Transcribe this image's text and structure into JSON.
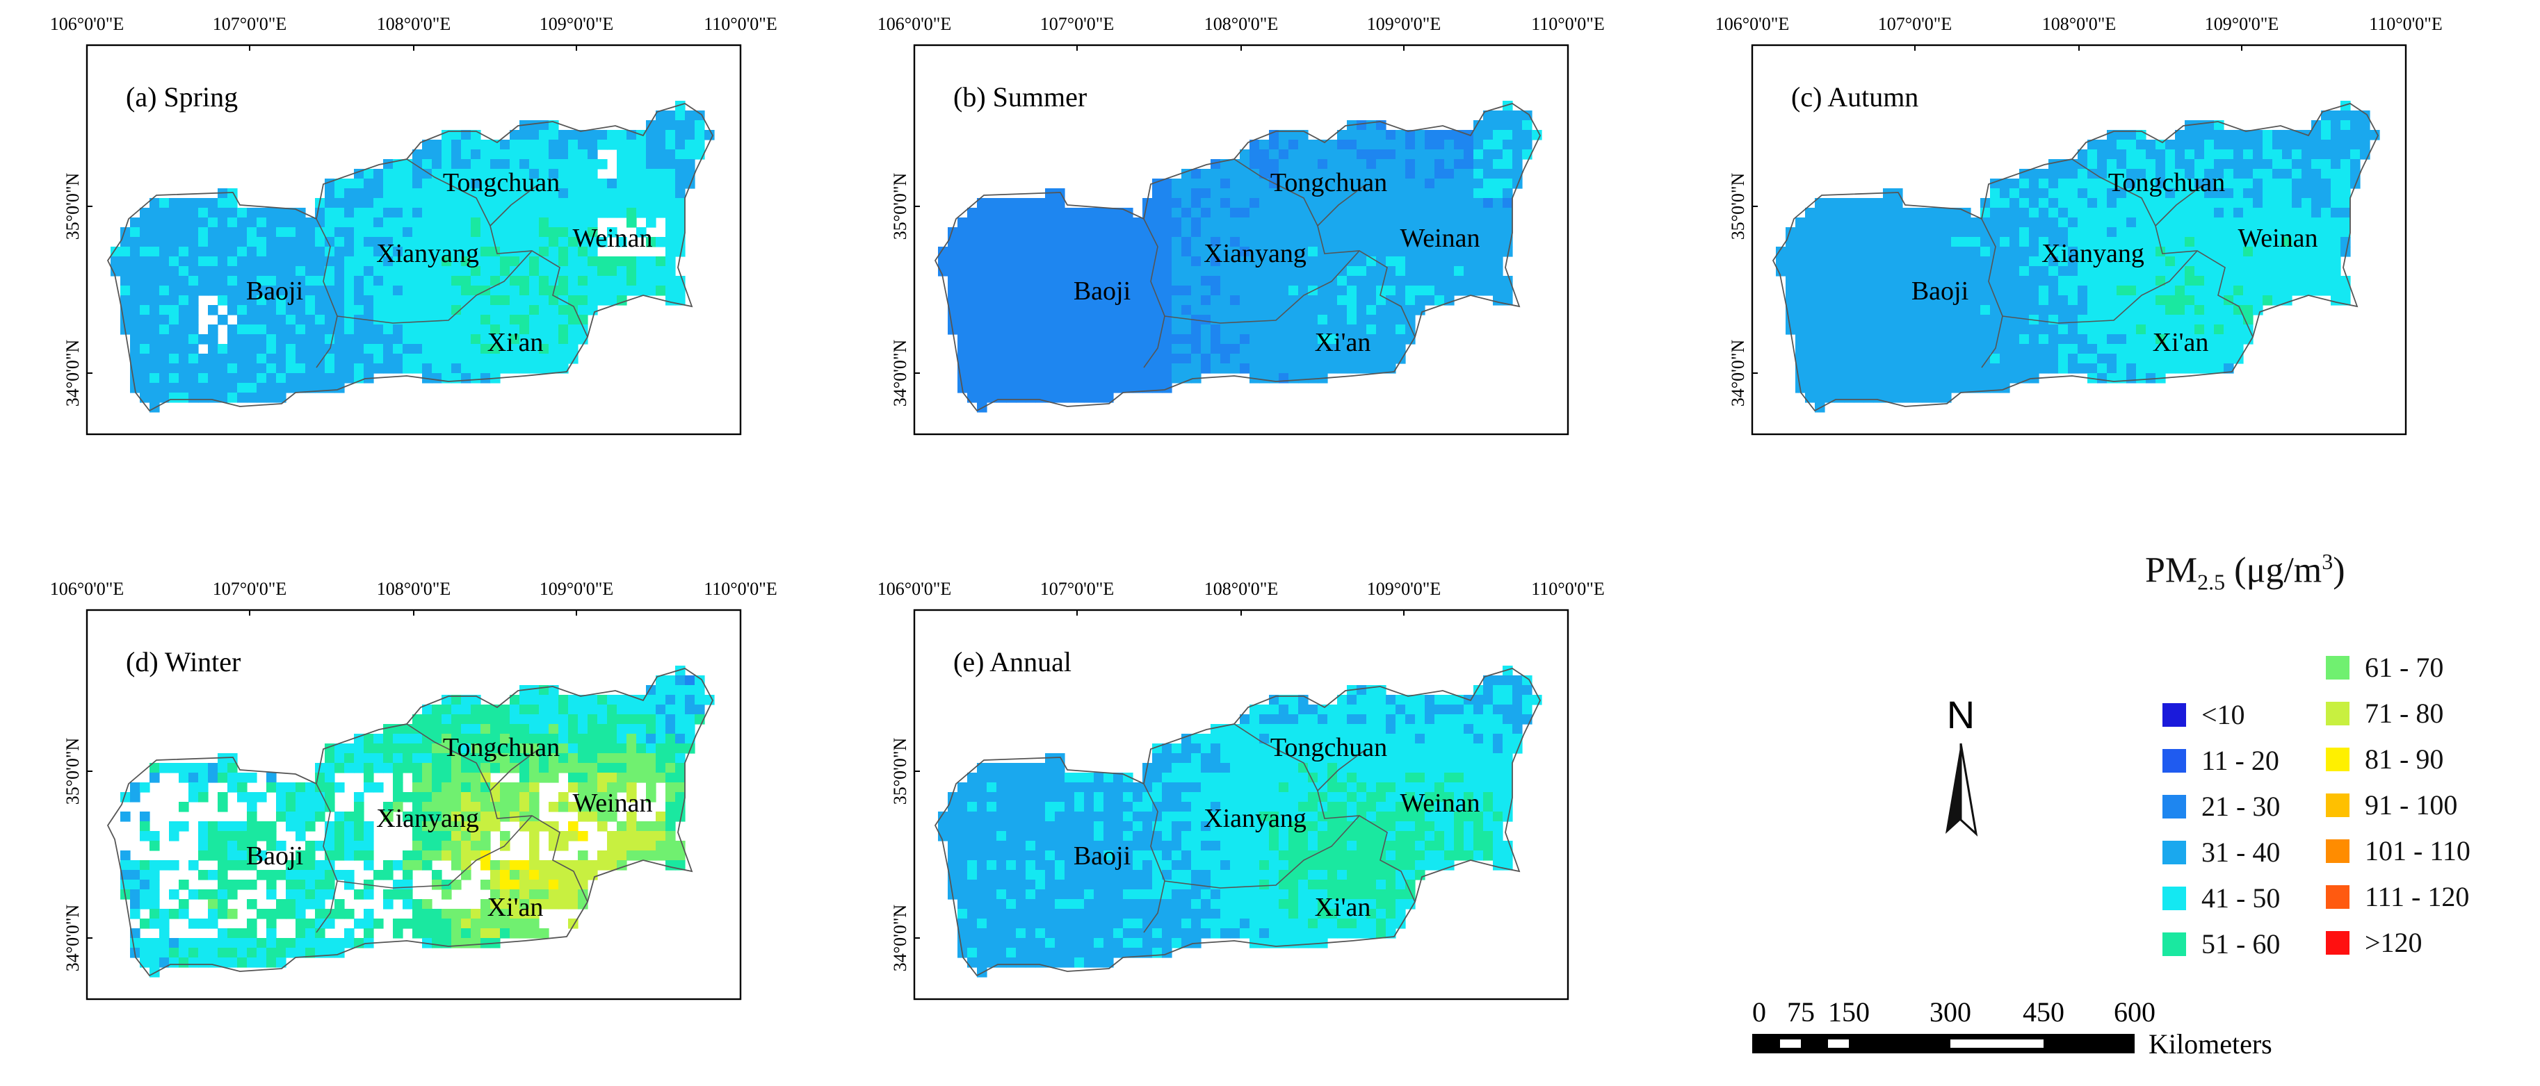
{
  "coord_labels": {
    "lon": [
      "106°0'0\"E",
      "107°0'0\"E",
      "108°0'0\"E",
      "109°0'0\"E",
      "110°0'0\"E"
    ],
    "lat": [
      "35°0'0\"N",
      "34°0'0\"N"
    ]
  },
  "panels": [
    {
      "id": "spring",
      "label": "(a) Spring",
      "season_index": 0
    },
    {
      "id": "summer",
      "label": "(b) Summer",
      "season_index": 1
    },
    {
      "id": "autumn",
      "label": "(c) Autumn",
      "season_index": 2
    },
    {
      "id": "winter",
      "label": "(d) Winter",
      "season_index": 3
    },
    {
      "id": "annual",
      "label": "(e) Annual",
      "season_index": 4
    }
  ],
  "city_labels": [
    "Tongchuan",
    "Xianyang",
    "Weinan",
    "Baoji",
    "Xi'an"
  ],
  "legend": {
    "title_main": "PM",
    "title_sub": "2.5",
    "title_unit": "(μg/m",
    "title_sup": "3",
    "title_close": ")",
    "items": [
      {
        "label": "<10",
        "color": "#1a1adb"
      },
      {
        "label": "11 - 20",
        "color": "#1f5bf0"
      },
      {
        "label": "21 - 30",
        "color": "#1e86f0"
      },
      {
        "label": "31 - 40",
        "color": "#1aa8ee"
      },
      {
        "label": "41 - 50",
        "color": "#14e8f2"
      },
      {
        "label": "51 - 60",
        "color": "#1ae8a0"
      },
      {
        "label": "61 - 70",
        "color": "#70f070"
      },
      {
        "label": "71 - 80",
        "color": "#c8f040"
      },
      {
        "label": "81 - 90",
        "color": "#fff000"
      },
      {
        "label": "91 - 100",
        "color": "#ffc000"
      },
      {
        "label": "101 - 110",
        "color": "#ff8c00"
      },
      {
        "label": "111 - 120",
        "color": "#ff5a10"
      },
      {
        "label": ">120",
        "color": "#ff1010"
      }
    ]
  },
  "north_label": "N",
  "scalebar": {
    "ticks": [
      "0",
      "75",
      "150",
      "300",
      "450",
      "600"
    ],
    "unit": "Kilometers"
  }
}
